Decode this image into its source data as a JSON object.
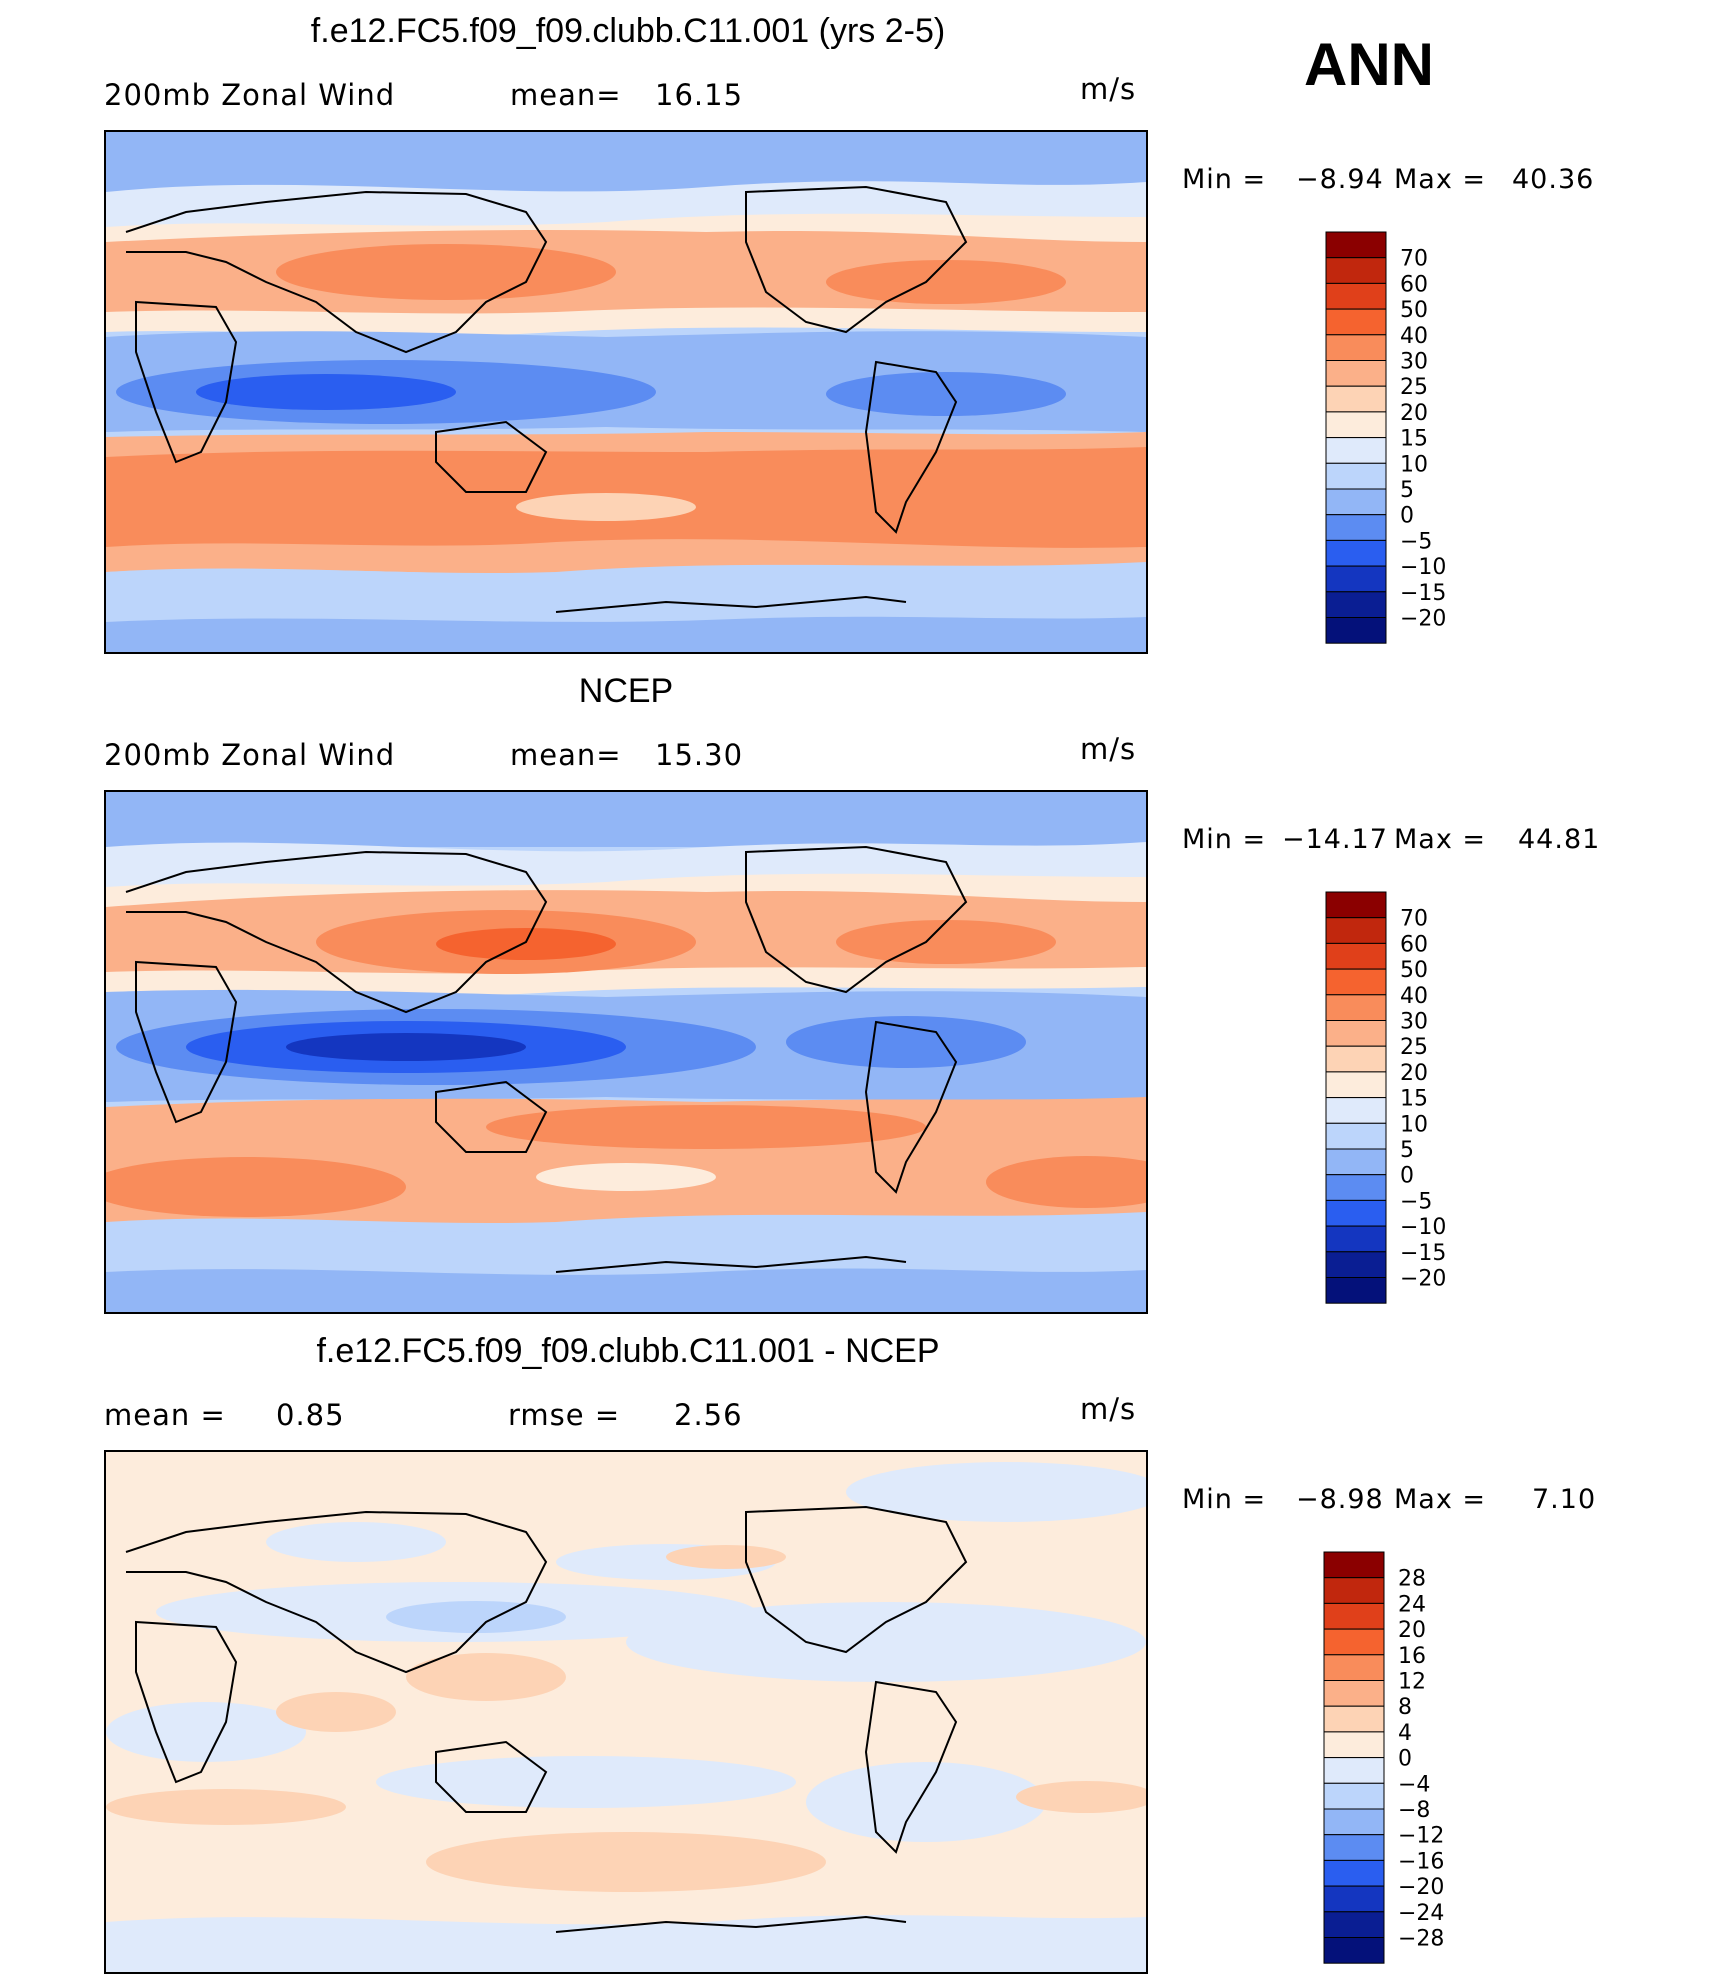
{
  "season": "ANN",
  "panels": [
    {
      "title": "f.e12.FC5.f09_f09.clubb.C11.001 (yrs 2-5)",
      "field_label": "200mb Zonal Wind",
      "stat1_label": "mean=",
      "stat1_value": "16.15",
      "stat2_label": "",
      "stat2_value": "",
      "units": "m/s",
      "min_label": "Min =",
      "min_value": "−8.94",
      "max_label": "Max =",
      "max_value": "40.36"
    },
    {
      "title": "NCEP",
      "field_label": "200mb Zonal Wind",
      "stat1_label": "mean=",
      "stat1_value": "15.30",
      "stat2_label": "",
      "stat2_value": "",
      "units": "m/s",
      "min_label": "Min =",
      "min_value": "−14.17",
      "max_label": "Max =",
      "max_value": "44.81"
    },
    {
      "title": "f.e12.FC5.f09_f09.clubb.C11.001 - NCEP",
      "field_label": "",
      "stat1_label": "mean =",
      "stat1_value": "0.85",
      "stat2_label": "rmse =",
      "stat2_value": "2.56",
      "units": "m/s",
      "min_label": "Min =",
      "min_value": "−8.98",
      "max_label": "Max =",
      "max_value": "7.10"
    }
  ],
  "chart_data": [
    {
      "type": "heatmap",
      "title": "f.e12.FC5.f09_f09.clubb.C11.001 (yrs 2-5)",
      "variable": "200mb Zonal Wind",
      "units": "m/s",
      "mean": 16.15,
      "min": -8.94,
      "max": 40.36,
      "colorbar_levels": [
        "70",
        "60",
        "50",
        "40",
        "30",
        "25",
        "20",
        "15",
        "10",
        "5",
        "0",
        "−5",
        "−10",
        "−15",
        "−20"
      ],
      "colorbar_colors": [
        "#8b0000",
        "#c1270d",
        "#e0401a",
        "#f5632f",
        "#f98c5b",
        "#fbb089",
        "#fdd3b5",
        "#fdecdc",
        "#dfeafb",
        "#bcd5fb",
        "#92b6f6",
        "#5c8cf2",
        "#2a5ef0",
        "#1436c0",
        "#0a1e93",
        "#04117a"
      ]
    },
    {
      "type": "heatmap",
      "title": "NCEP",
      "variable": "200mb Zonal Wind",
      "units": "m/s",
      "mean": 15.3,
      "min": -14.17,
      "max": 44.81,
      "colorbar_levels": [
        "70",
        "60",
        "50",
        "40",
        "30",
        "25",
        "20",
        "15",
        "10",
        "5",
        "0",
        "−5",
        "−10",
        "−15",
        "−20"
      ],
      "colorbar_colors": [
        "#8b0000",
        "#c1270d",
        "#e0401a",
        "#f5632f",
        "#f98c5b",
        "#fbb089",
        "#fdd3b5",
        "#fdecdc",
        "#dfeafb",
        "#bcd5fb",
        "#92b6f6",
        "#5c8cf2",
        "#2a5ef0",
        "#1436c0",
        "#0a1e93",
        "#04117a"
      ]
    },
    {
      "type": "heatmap",
      "title": "f.e12.FC5.f09_f09.clubb.C11.001 - NCEP",
      "units": "m/s",
      "mean": 0.85,
      "rmse": 2.56,
      "min": -8.98,
      "max": 7.1,
      "colorbar_levels": [
        "28",
        "24",
        "20",
        "16",
        "12",
        "8",
        "4",
        "0",
        "−4",
        "−8",
        "−12",
        "−16",
        "−20",
        "−24",
        "−28"
      ],
      "colorbar_colors": [
        "#8b0000",
        "#c1270d",
        "#e0401a",
        "#f5632f",
        "#f98c5b",
        "#fbb089",
        "#fdd3b5",
        "#fdecdc",
        "#dfeafb",
        "#bcd5fb",
        "#92b6f6",
        "#5c8cf2",
        "#2a5ef0",
        "#1436c0",
        "#0a1e93",
        "#04117a"
      ]
    }
  ]
}
